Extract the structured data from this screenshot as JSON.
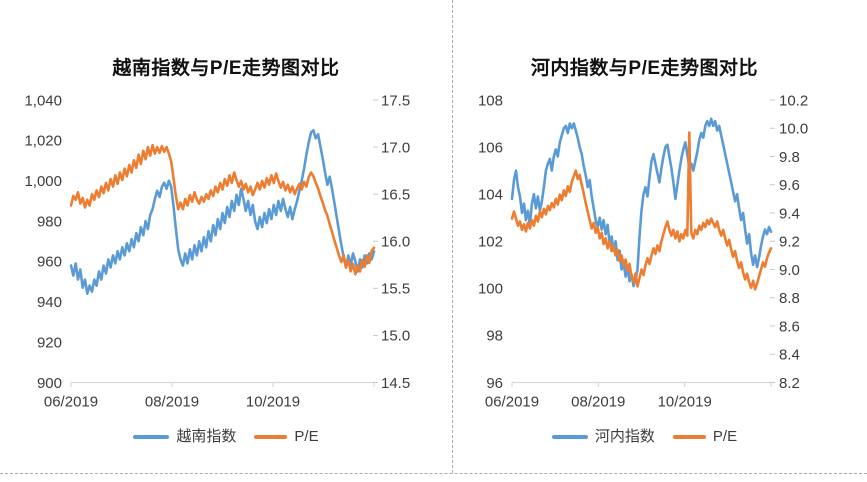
{
  "page": {
    "background": "#ffffff",
    "page_break_line_color": "#ababab"
  },
  "chart_data": [
    {
      "type": "line",
      "title": "越南指数与P/E走势图对比",
      "x_tick_labels": [
        "06/2019",
        "08/2019",
        "10/2019"
      ],
      "grid": false,
      "legend_position": "bottom",
      "left_axis": {
        "labels": [
          "1,040",
          "1,020",
          "1,000",
          "980",
          "960",
          "940",
          "920",
          "900"
        ],
        "min": 900,
        "max": 1040
      },
      "right_axis": {
        "labels": [
          "17.5",
          "17.0",
          "16.5",
          "16.0",
          "15.5",
          "15.0",
          "14.5"
        ],
        "min": 14.5,
        "max": 17.5
      },
      "series": [
        {
          "name": "越南指数",
          "axis": "left",
          "color": "#5B9BD5",
          "values": [
            958,
            953,
            959,
            951,
            956,
            947,
            951,
            944,
            948,
            945,
            951,
            948,
            955,
            951,
            958,
            954,
            961,
            957,
            963,
            959,
            965,
            961,
            967,
            963,
            969,
            965,
            971,
            967,
            974,
            970,
            977,
            973,
            980,
            976,
            983,
            986,
            991,
            995,
            992,
            997,
            999,
            996,
            1000,
            997,
            987,
            976,
            966,
            961,
            958,
            964,
            959,
            966,
            961,
            968,
            963,
            970,
            965,
            972,
            967,
            975,
            970,
            978,
            973,
            981,
            976,
            984,
            979,
            987,
            982,
            990,
            985,
            993,
            988,
            996,
            991,
            985,
            990,
            983,
            988,
            980,
            976,
            982,
            977,
            984,
            979,
            986,
            981,
            988,
            983,
            990,
            985,
            991,
            986,
            982,
            987,
            981,
            986,
            990,
            995,
            1000,
            1006,
            1013,
            1019,
            1024,
            1025,
            1021,
            1023,
            1017,
            1011,
            1004,
            998,
            1002,
            996,
            989,
            982,
            975,
            968,
            962,
            957,
            963,
            958,
            964,
            960,
            955,
            961,
            957,
            963,
            959,
            964,
            961,
            965
          ]
        },
        {
          "name": "P/E",
          "axis": "right",
          "color": "#ED7D31",
          "values": [
            16.38,
            16.48,
            16.44,
            16.52,
            16.4,
            16.46,
            16.36,
            16.44,
            16.38,
            16.5,
            16.44,
            16.54,
            16.47,
            16.58,
            16.51,
            16.62,
            16.54,
            16.66,
            16.58,
            16.7,
            16.61,
            16.73,
            16.65,
            16.77,
            16.69,
            16.81,
            16.73,
            16.86,
            16.78,
            16.92,
            16.82,
            16.96,
            16.87,
            17.0,
            16.91,
            17.02,
            16.93,
            17.0,
            16.94,
            17.01,
            16.95,
            17.0,
            16.93,
            16.85,
            16.66,
            16.48,
            16.34,
            16.41,
            16.34,
            16.45,
            16.38,
            16.49,
            16.42,
            16.52,
            16.44,
            16.4,
            16.47,
            16.42,
            16.5,
            16.45,
            16.54,
            16.48,
            16.58,
            16.52,
            16.62,
            16.55,
            16.66,
            16.59,
            16.7,
            16.62,
            16.73,
            16.65,
            16.58,
            16.64,
            16.55,
            16.61,
            16.52,
            16.58,
            16.49,
            16.55,
            16.62,
            16.55,
            16.64,
            16.57,
            16.67,
            16.6,
            16.7,
            16.62,
            16.72,
            16.64,
            16.57,
            16.63,
            16.54,
            16.6,
            16.52,
            16.58,
            16.5,
            16.56,
            16.61,
            16.55,
            16.63,
            16.58,
            16.68,
            16.73,
            16.69,
            16.62,
            16.56,
            16.48,
            16.41,
            16.33,
            16.27,
            16.18,
            16.1,
            16.01,
            15.93,
            15.85,
            15.78,
            15.85,
            15.72,
            15.8,
            15.68,
            15.76,
            15.65,
            15.74,
            15.68,
            15.8,
            15.73,
            15.85,
            15.77,
            15.9,
            15.93
          ]
        }
      ]
    },
    {
      "type": "line",
      "title": "河内指数与P/E走势图对比",
      "x_tick_labels": [
        "06/2019",
        "08/2019",
        "10/2019"
      ],
      "grid": false,
      "legend_position": "bottom",
      "left_axis": {
        "labels": [
          "108",
          "106",
          "104",
          "102",
          "100",
          "98",
          "96"
        ],
        "min": 96,
        "max": 108
      },
      "right_axis": {
        "labels": [
          "10.2",
          "10.0",
          "9.8",
          "9.6",
          "9.4",
          "9.2",
          "9.0",
          "8.8",
          "8.6",
          "8.4",
          "8.2"
        ],
        "min": 8.2,
        "max": 10.2
      },
      "series": [
        {
          "name": "河内指数",
          "axis": "left",
          "color": "#5B9BD5",
          "values": [
            103.8,
            104.6,
            105.0,
            104.3,
            103.9,
            103.2,
            103.6,
            102.9,
            103.3,
            102.7,
            103.6,
            104.0,
            103.4,
            103.9,
            103.3,
            103.7,
            104.3,
            105.0,
            105.3,
            105.5,
            105.0,
            105.6,
            105.9,
            105.6,
            106.2,
            106.5,
            106.8,
            106.9,
            106.6,
            107.0,
            106.8,
            107.0,
            106.7,
            106.4,
            106.0,
            105.7,
            105.2,
            104.8,
            104.3,
            104.6,
            103.9,
            103.4,
            102.9,
            102.6,
            103.0,
            102.5,
            102.9,
            102.3,
            102.7,
            101.9,
            102.2,
            101.6,
            102.0,
            101.2,
            101.6,
            100.8,
            101.1,
            100.5,
            100.9,
            100.3,
            100.6,
            100.1,
            100.4,
            100.8,
            102.2,
            103.3,
            104.0,
            104.3,
            103.9,
            104.7,
            105.4,
            105.7,
            105.3,
            104.9,
            104.5,
            105.1,
            105.6,
            106.0,
            106.1,
            105.6,
            105.1,
            104.5,
            103.8,
            104.4,
            105.0,
            105.5,
            105.9,
            106.2,
            105.7,
            105.1,
            105.3,
            105.0,
            105.4,
            105.8,
            106.3,
            106.6,
            106.4,
            106.9,
            107.1,
            106.9,
            107.2,
            106.9,
            107.1,
            106.7,
            106.9,
            106.5,
            106.1,
            105.7,
            105.3,
            104.9,
            104.5,
            104.1,
            103.7,
            104.0,
            103.4,
            102.9,
            103.2,
            102.5,
            101.9,
            102.3,
            101.5,
            101.0,
            101.4,
            100.9,
            101.3,
            101.8,
            102.2,
            102.5,
            102.3,
            102.6,
            102.4
          ]
        },
        {
          "name": "P/E",
          "axis": "right",
          "color": "#ED7D31",
          "values": [
            9.36,
            9.41,
            9.36,
            9.31,
            9.34,
            9.28,
            9.32,
            9.27,
            9.33,
            9.29,
            9.35,
            9.31,
            9.38,
            9.34,
            9.41,
            9.37,
            9.43,
            9.39,
            9.45,
            9.42,
            9.47,
            9.44,
            9.5,
            9.46,
            9.53,
            9.49,
            9.56,
            9.52,
            9.59,
            9.55,
            9.62,
            9.66,
            9.7,
            9.64,
            9.67,
            9.6,
            9.54,
            9.47,
            9.41,
            9.35,
            9.29,
            9.33,
            9.26,
            9.3,
            9.22,
            9.26,
            9.18,
            9.22,
            9.15,
            9.2,
            9.13,
            9.17,
            9.1,
            9.14,
            9.06,
            9.1,
            9.03,
            9.07,
            8.99,
            9.04,
            8.95,
            8.91,
            8.97,
            8.88,
            8.94,
            9.0,
            8.96,
            9.03,
            9.08,
            9.04,
            9.1,
            9.15,
            9.11,
            9.17,
            9.13,
            9.2,
            9.25,
            9.3,
            9.34,
            9.28,
            9.24,
            9.28,
            9.22,
            9.27,
            9.2,
            9.25,
            9.22,
            9.28,
            9.24,
            9.97,
            9.26,
            9.22,
            9.28,
            9.25,
            9.31,
            9.28,
            9.33,
            9.3,
            9.35,
            9.32,
            9.36,
            9.33,
            9.3,
            9.34,
            9.28,
            9.24,
            9.28,
            9.22,
            9.17,
            9.21,
            9.14,
            9.09,
            9.13,
            9.06,
            9.01,
            9.05,
            8.98,
            8.93,
            8.97,
            8.91,
            8.87,
            8.92,
            8.86,
            8.9,
            8.95,
            9.0,
            9.05,
            9.02,
            9.08,
            9.12,
            9.15
          ]
        }
      ]
    }
  ]
}
